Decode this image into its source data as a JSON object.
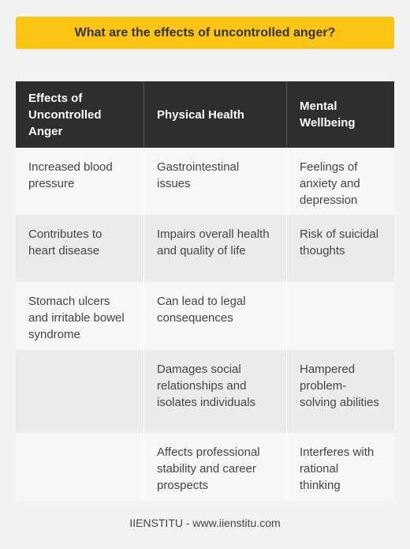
{
  "title": "What are the effects of uncontrolled anger?",
  "table": {
    "headers": [
      "Effects of Uncontrolled Anger",
      "Physical Health",
      "Mental Wellbeing"
    ],
    "rows": [
      [
        "Increased blood pressure",
        "Gastrointestinal issues",
        "Feelings of anxiety and depression"
      ],
      [
        "Contributes to heart disease",
        "Impairs overall health and quality of life",
        "Risk of suicidal thoughts"
      ],
      [
        "Stomach ulcers and irritable bowel syndrome",
        "Can lead to legal consequences",
        ""
      ],
      [
        "",
        "Damages social relationships and isolates individuals",
        "Hampered problem-solving abilities"
      ],
      [
        "",
        "Affects professional stability and career prospects",
        "Interferes with rational thinking"
      ]
    ]
  },
  "footer": "IIENSTITU - www.iienstitu.com"
}
